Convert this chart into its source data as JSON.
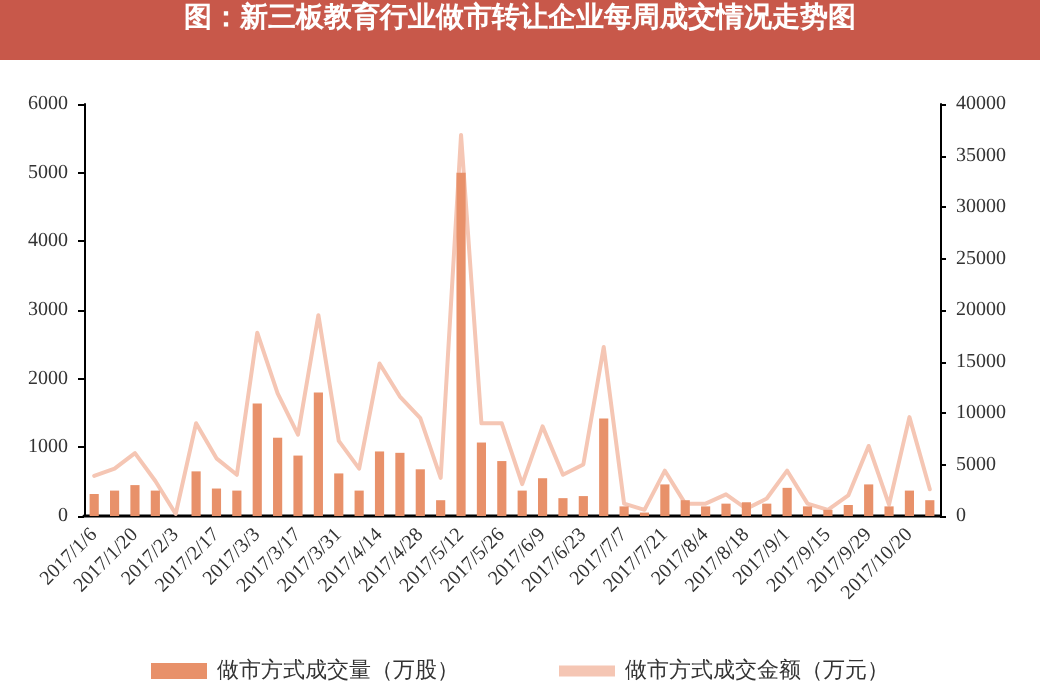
{
  "chart_data": {
    "type": "bar",
    "title": "图：新三板教育行业做市转让企业每周成交情况走势图",
    "categories": [
      "2017/1/6",
      null,
      "2017/1/20",
      null,
      "2017/2/3",
      null,
      "2017/2/17",
      null,
      "2017/3/3",
      null,
      "2017/3/17",
      null,
      "2017/3/31",
      null,
      "2017/4/14",
      null,
      "2017/4/28",
      null,
      "2017/5/12",
      null,
      "2017/5/26",
      null,
      "2017/6/9",
      null,
      "2017/6/23",
      null,
      "2017/7/7",
      null,
      "2017/7/21",
      null,
      "2017/8/4",
      null,
      "2017/8/18",
      null,
      "2017/9/1",
      null,
      "2017/9/15",
      null,
      "2017/9/29",
      null,
      "2017/10/20",
      null
    ],
    "series": [
      {
        "name": "做市方式成交量（万股）",
        "color": "#e8916a",
        "values": [
          320,
          370,
          450,
          370,
          0,
          650,
          400,
          370,
          1640,
          1140,
          880,
          1800,
          620,
          370,
          940,
          920,
          680,
          230,
          5000,
          1070,
          800,
          370,
          550,
          260,
          290,
          1420,
          140,
          50,
          460,
          230,
          140,
          180,
          200,
          180,
          410,
          140,
          90,
          160,
          460,
          140,
          370,
          230
        ]
      },
      {
        "name": "做市方式成交金额（万元）",
        "type": "line",
        "axis": "y2",
        "color": "#f5c6b4",
        "values": [
          3900,
          4600,
          6100,
          3400,
          200,
          9000,
          5600,
          4000,
          17800,
          11900,
          7900,
          19500,
          7300,
          4600,
          14800,
          11600,
          9500,
          3700,
          37000,
          9000,
          9000,
          3100,
          8700,
          4000,
          5000,
          16400,
          1200,
          600,
          4400,
          1200,
          1200,
          2100,
          700,
          1700,
          4400,
          1200,
          600,
          2000,
          6800,
          1100,
          9600,
          2600
        ]
      }
    ],
    "ylim": [
      0,
      6000
    ],
    "yticks": [
      0,
      1000,
      2000,
      3000,
      4000,
      5000,
      6000
    ],
    "y2lim": [
      0,
      40000
    ],
    "y2ticks": [
      0,
      5000,
      10000,
      15000,
      20000,
      25000,
      30000,
      35000,
      40000
    ],
    "legend": "bottom",
    "grid": false,
    "marker": "none",
    "line_style": "solid"
  }
}
